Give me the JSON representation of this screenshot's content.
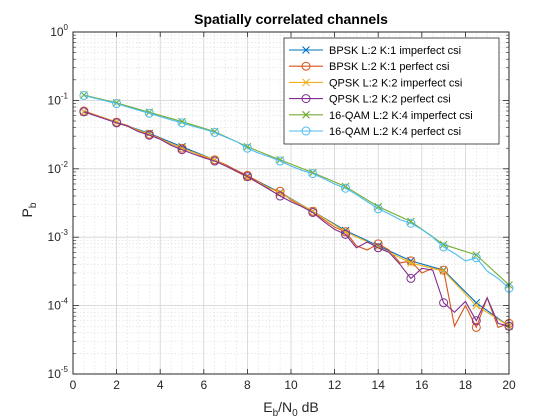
{
  "chart_data": {
    "type": "line",
    "title": "Spatially correlated channels",
    "xlabel": {
      "base": "E",
      "sub1": "b",
      "mid": "/N",
      "sub2": "0",
      "tail": " dB"
    },
    "ylabel": {
      "base": "P",
      "sub": "b"
    },
    "xlim": [
      0,
      20
    ],
    "ylim": [
      1e-05,
      1
    ],
    "y_scale": "log",
    "grid": true,
    "minor_grid": true,
    "legend_position": "top-right",
    "x_ticks": [
      0,
      2,
      4,
      6,
      8,
      10,
      12,
      14,
      16,
      18,
      20
    ],
    "x_tick_labels": [
      "0",
      "2",
      "4",
      "6",
      "8",
      "10",
      "12",
      "14",
      "16",
      "18",
      "20"
    ],
    "y_ticks": [
      1e-05,
      0.0001,
      0.001,
      0.01,
      0.1,
      1
    ],
    "y_tick_labels": [
      {
        "base": "10",
        "exp": "-5"
      },
      {
        "base": "10",
        "exp": "-4"
      },
      {
        "base": "10",
        "exp": "-3"
      },
      {
        "base": "10",
        "exp": "-2"
      },
      {
        "base": "10",
        "exp": "-1"
      },
      {
        "base": "10",
        "exp": "0"
      }
    ],
    "series": [
      {
        "name": "BPSK L:2 K:1 imperfect csi",
        "color": "#0072BD",
        "marker": "x",
        "x": [
          0.5,
          2,
          3.5,
          5,
          6.5,
          8,
          9.5,
          11,
          12.5,
          14,
          15.5,
          17,
          18.5,
          20
        ],
        "y": [
          0.068,
          0.048,
          0.033,
          0.021,
          0.0135,
          0.0078,
          0.0045,
          0.0024,
          0.00125,
          0.00075,
          0.00045,
          0.00033,
          0.00011,
          5e-05
        ]
      },
      {
        "name": "BPSK L:2 K:1 perfect csi",
        "color": "#D95319",
        "marker": "o",
        "x": [
          0.5,
          2,
          2.5,
          3,
          3.5,
          4,
          4.5,
          5,
          5.5,
          6,
          6.5,
          7,
          7.5,
          8,
          8.5,
          9,
          9.5,
          10,
          10.5,
          11,
          11.5,
          12,
          12.5,
          13,
          13.5,
          14,
          14.5,
          15,
          15.5,
          16,
          16.5,
          17,
          17.5,
          18,
          18.5,
          19,
          19.5,
          20
        ],
        "y": [
          0.07,
          0.048,
          0.043,
          0.036,
          0.032,
          0.028,
          0.023,
          0.02,
          0.0175,
          0.015,
          0.0135,
          0.0115,
          0.0095,
          0.008,
          0.0065,
          0.0052,
          0.0047,
          0.0035,
          0.0029,
          0.0024,
          0.0018,
          0.0014,
          0.0012,
          0.00075,
          0.00065,
          0.0008,
          0.00065,
          0.00042,
          0.00045,
          0.0003,
          0.00035,
          0.00033,
          5e-05,
          0.0001,
          4.8e-05,
          0.00013,
          4.8e-05,
          5.5e-05
        ]
      },
      {
        "name": "QPSK L:2 K:2 imperfect csi",
        "color": "#EDB120",
        "marker": "x",
        "x": [
          0.5,
          2,
          3.5,
          5,
          6.5,
          8,
          9.5,
          11,
          12.5,
          14,
          15.5,
          17,
          18.5,
          20
        ],
        "y": [
          0.068,
          0.048,
          0.032,
          0.02,
          0.0135,
          0.0075,
          0.0044,
          0.0024,
          0.0012,
          0.00072,
          0.00042,
          0.00032,
          0.0001,
          5e-05
        ]
      },
      {
        "name": "QPSK L:2 K:2 perfect csi",
        "color": "#7E2F8E",
        "marker": "o",
        "x": [
          0.5,
          2,
          2.5,
          3,
          3.5,
          4,
          4.5,
          5,
          5.5,
          6,
          6.5,
          7,
          7.5,
          8,
          8.5,
          9,
          9.5,
          10,
          10.5,
          11,
          11.5,
          12,
          12.5,
          13,
          13.5,
          14,
          14.5,
          15,
          15.5,
          16,
          16.5,
          17,
          17.5,
          18,
          18.5,
          19,
          19.5,
          20
        ],
        "y": [
          0.068,
          0.047,
          0.042,
          0.035,
          0.031,
          0.027,
          0.022,
          0.019,
          0.0165,
          0.0145,
          0.013,
          0.011,
          0.0092,
          0.0077,
          0.0062,
          0.005,
          0.004,
          0.0033,
          0.0028,
          0.0023,
          0.0017,
          0.0013,
          0.0011,
          0.0007,
          0.00085,
          0.0007,
          0.0006,
          0.0004,
          0.00025,
          0.00035,
          0.00033,
          0.00011,
          8e-05,
          0.000115,
          6e-05,
          0.00013,
          5.5e-05,
          5e-05
        ]
      },
      {
        "name": "16-QAM L:2 K:4 imperfect csi",
        "color": "#77AC30",
        "marker": "x",
        "x": [
          0.5,
          2,
          3.5,
          5,
          6.5,
          8,
          9.5,
          11,
          12.5,
          14,
          15.5,
          17,
          18.5,
          20
        ],
        "y": [
          0.12,
          0.092,
          0.067,
          0.049,
          0.035,
          0.021,
          0.0135,
          0.0088,
          0.0055,
          0.0028,
          0.0017,
          0.00078,
          0.00055,
          0.0002
        ]
      },
      {
        "name": "16-QAM L:2 K:4 perfect csi",
        "color": "#4DBEEE",
        "marker": "o",
        "x": [
          0.5,
          2,
          2.5,
          3,
          3.5,
          4,
          4.5,
          5,
          5.5,
          6,
          6.5,
          7,
          7.5,
          8,
          8.5,
          9,
          9.5,
          10,
          10.5,
          11,
          11.5,
          12,
          12.5,
          13,
          13.5,
          14,
          14.5,
          15,
          15.5,
          16,
          16.5,
          17,
          17.5,
          18,
          18.5,
          19,
          19.5,
          20
        ],
        "y": [
          0.118,
          0.09,
          0.08,
          0.072,
          0.065,
          0.058,
          0.052,
          0.047,
          0.042,
          0.038,
          0.034,
          0.029,
          0.025,
          0.02,
          0.017,
          0.015,
          0.013,
          0.011,
          0.0095,
          0.0085,
          0.0072,
          0.006,
          0.0052,
          0.0042,
          0.0033,
          0.0026,
          0.0022,
          0.0018,
          0.0016,
          0.0013,
          0.001,
          0.00072,
          0.00058,
          0.00045,
          0.0005,
          0.00032,
          0.00025,
          0.00018
        ]
      }
    ]
  }
}
